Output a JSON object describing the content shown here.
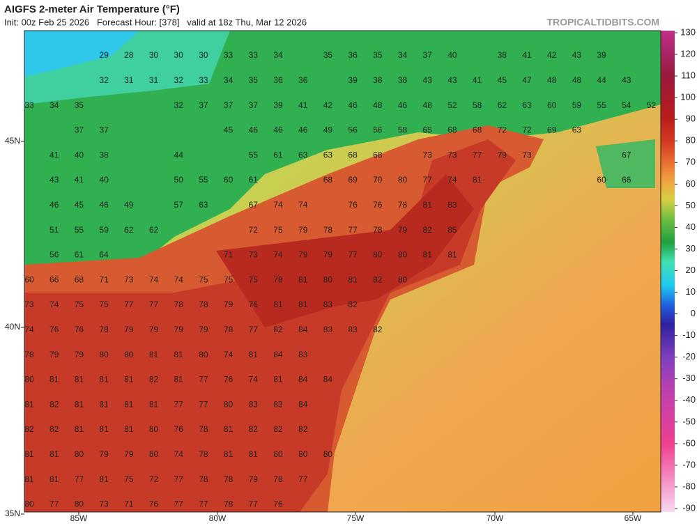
{
  "header": {
    "title": "AIGFS 2-meter Air Temperature (°F)",
    "subtitle": "Init: 00z Feb 25 2026   Forecast Hour: [378]   valid at 18z Thu, Mar 12 2026",
    "site": "TROPICALTIDBITS.COM"
  },
  "colorbar": {
    "ticks": [
      130,
      120,
      110,
      100,
      90,
      80,
      70,
      60,
      50,
      40,
      30,
      20,
      10,
      0,
      -10,
      -20,
      -30,
      -40,
      -50,
      -60,
      -70,
      -80,
      -90
    ]
  },
  "lat_labels": [
    "45N",
    "40N",
    "35N"
  ],
  "lon_labels": [
    "85W",
    "80W",
    "75W",
    "70W",
    "65W"
  ],
  "temperatures": [
    [
      null,
      null,
      null,
      29,
      28,
      30,
      30,
      30,
      33,
      33,
      34,
      null,
      35,
      36,
      35,
      34,
      37,
      40,
      null,
      38,
      41,
      42,
      43,
      39
    ],
    [
      null,
      null,
      null,
      32,
      31,
      31,
      32,
      33,
      34,
      35,
      36,
      36,
      null,
      39,
      38,
      38,
      43,
      43,
      41,
      45,
      47,
      48,
      48,
      44,
      43
    ],
    [
      33,
      34,
      35,
      null,
      null,
      null,
      32,
      37,
      37,
      37,
      39,
      41,
      42,
      46,
      48,
      46,
      48,
      52,
      58,
      62,
      63,
      60,
      59,
      55,
      54,
      52
    ],
    [
      null,
      null,
      37,
      37,
      null,
      null,
      null,
      null,
      45,
      46,
      46,
      46,
      49,
      56,
      56,
      58,
      65,
      68,
      68,
      72,
      72,
      69,
      63
    ],
    [
      null,
      41,
      40,
      38,
      null,
      null,
      44,
      null,
      null,
      55,
      61,
      63,
      63,
      68,
      68,
      null,
      73,
      73,
      77,
      79,
      73,
      null,
      null,
      null,
      67
    ],
    [
      null,
      43,
      41,
      40,
      null,
      null,
      50,
      55,
      60,
      61,
      null,
      null,
      68,
      69,
      70,
      80,
      77,
      74,
      81,
      null,
      null,
      null,
      null,
      60,
      66
    ],
    [
      null,
      46,
      45,
      46,
      49,
      null,
      57,
      63,
      null,
      67,
      74,
      74,
      null,
      76,
      76,
      78,
      81,
      83
    ],
    [
      null,
      51,
      55,
      59,
      62,
      62,
      null,
      null,
      null,
      72,
      75,
      79,
      78,
      77,
      78,
      79,
      82,
      85
    ],
    [
      null,
      56,
      61,
      64,
      null,
      null,
      null,
      null,
      71,
      73,
      74,
      79,
      79,
      77,
      80,
      80,
      81,
      81
    ],
    [
      60,
      66,
      68,
      71,
      73,
      74,
      74,
      75,
      75,
      75,
      78,
      81,
      80,
      81,
      82,
      80
    ],
    [
      73,
      74,
      75,
      75,
      77,
      77,
      78,
      78,
      79,
      76,
      81,
      81,
      83,
      82
    ],
    [
      74,
      76,
      76,
      78,
      79,
      79,
      79,
      79,
      78,
      77,
      82,
      84,
      83,
      83,
      82
    ],
    [
      78,
      79,
      79,
      80,
      80,
      81,
      81,
      80,
      74,
      81,
      84,
      83
    ],
    [
      80,
      81,
      81,
      81,
      81,
      82,
      81,
      77,
      76,
      74,
      81,
      84,
      84
    ],
    [
      81,
      82,
      81,
      81,
      81,
      81,
      77,
      77,
      80,
      83,
      83,
      84
    ],
    [
      82,
      82,
      81,
      81,
      81,
      80,
      76,
      78,
      81,
      82,
      82,
      82
    ],
    [
      81,
      81,
      80,
      79,
      79,
      80,
      74,
      78,
      81,
      81,
      80,
      80,
      80
    ],
    [
      81,
      81,
      77,
      81,
      75,
      72,
      77,
      78,
      78,
      79,
      78,
      77
    ],
    [
      80,
      77,
      80,
      73,
      71,
      76,
      77,
      77,
      78,
      77,
      76
    ]
  ]
}
